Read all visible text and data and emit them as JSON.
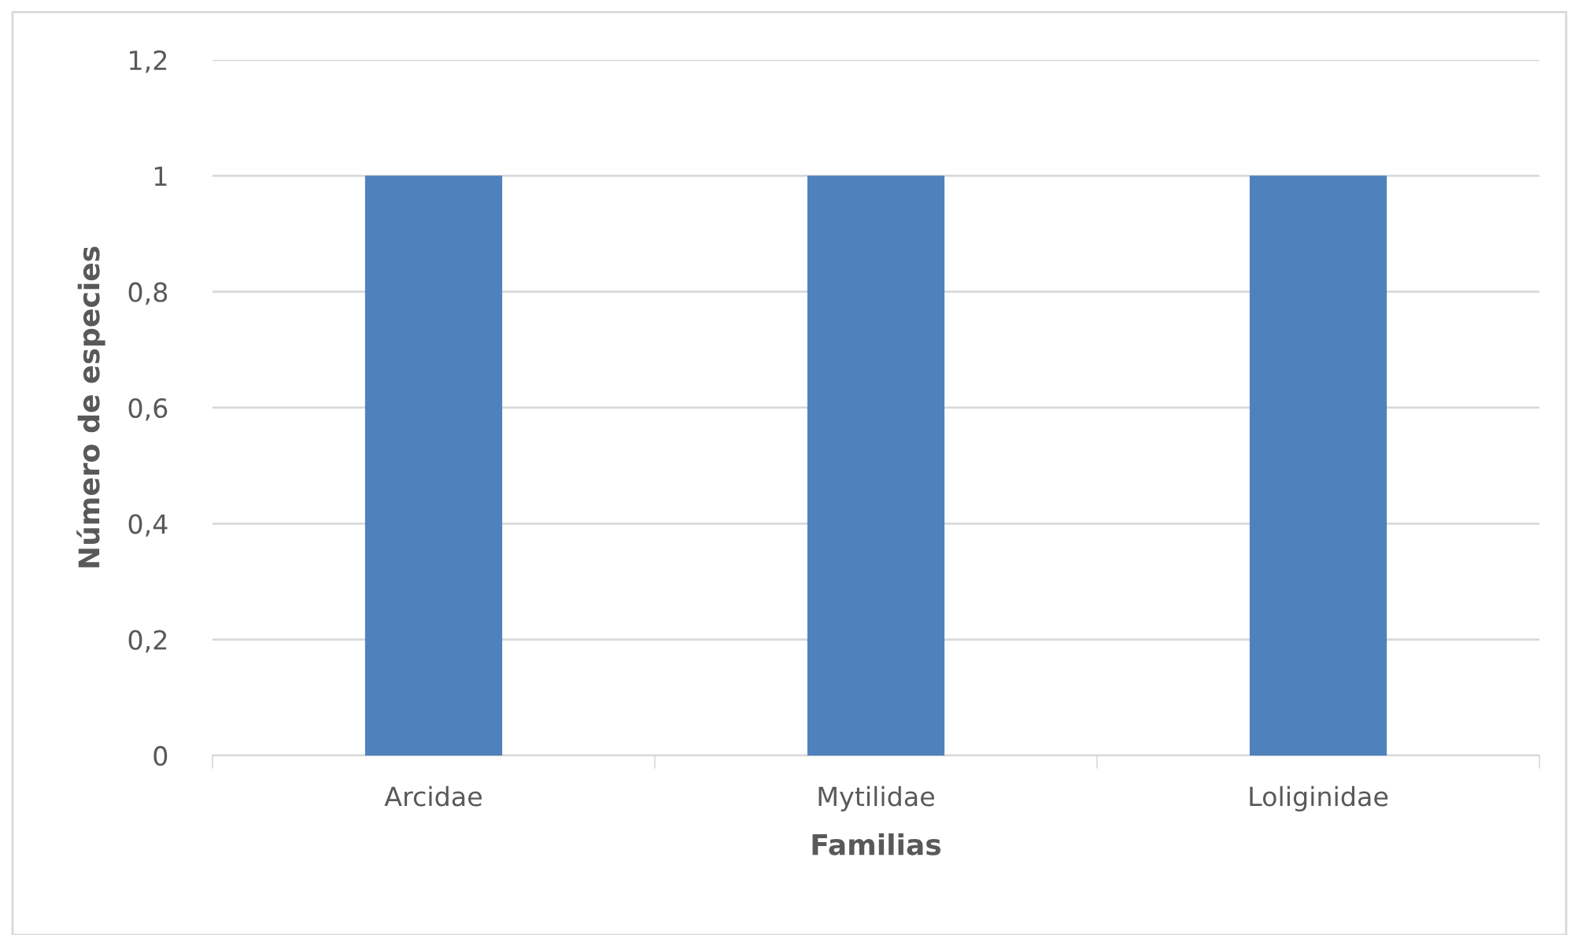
{
  "chart_data": {
    "type": "bar",
    "xlabel": "Familias",
    "ylabel": "Número de especies",
    "categories": [
      "Arcidae",
      "Mytilidae",
      "Loliginidae"
    ],
    "values": [
      1,
      1,
      1
    ],
    "color": "#4f81bd",
    "ylim": [
      0,
      1.2
    ],
    "yticks": [
      0,
      {
        "value": 0.2,
        "label": "0,2"
      },
      {
        "value": 0.4,
        "label": "0,4"
      },
      {
        "value": 0.6,
        "label": "0,6"
      },
      {
        "value": 0.8,
        "label": "0,8"
      },
      1,
      {
        "value": 1.2,
        "label": "1,2"
      }
    ],
    "grid": "y"
  }
}
